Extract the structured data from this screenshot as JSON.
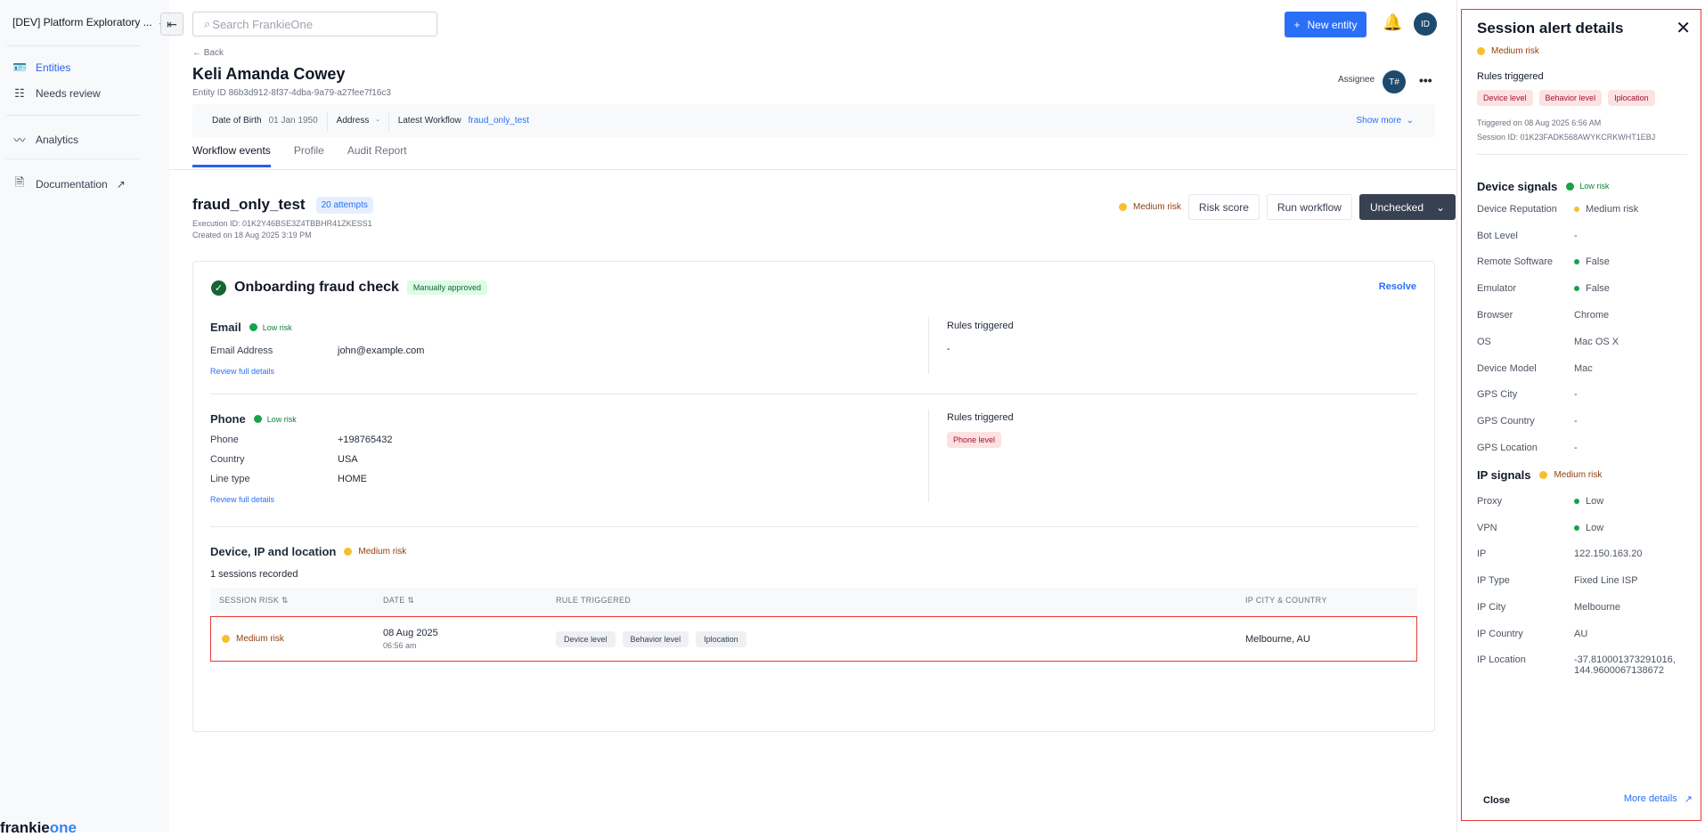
{
  "sidebar": {
    "workspace": "[DEV] Platform Exploratory ...",
    "items": [
      {
        "label": "Entities",
        "icon": "entities-card-icon"
      },
      {
        "label": "Needs review",
        "icon": "needs-review-icon"
      },
      {
        "label": "Analytics",
        "icon": "analytics-line-icon"
      },
      {
        "label": "Documentation",
        "icon": "document-icon"
      }
    ],
    "logo_a": "frankie",
    "logo_b": "one"
  },
  "header": {
    "search_placeholder": "Search FrankieOne",
    "new_entity": "New entity",
    "user_initials": "ID"
  },
  "entity": {
    "back": "Back",
    "name": "Keli Amanda Cowey",
    "entity_id": "Entity ID 86b3d912-8f37-4dba-9a79-a27fee7f16c3",
    "assignee_label": "Assignee",
    "assignee_initials": "T#",
    "dob_label": "Date of Birth",
    "dob": "01 Jan 1950",
    "address_label": "Address",
    "address": "-",
    "workflow_label": "Latest Workflow",
    "workflow": "fraud_only_test",
    "show_more": "Show more"
  },
  "tabs": [
    "Workflow events",
    "Profile",
    "Audit Report"
  ],
  "workflow": {
    "title": "fraud_only_test",
    "attempts": "20 attempts",
    "execution_id": "Execution ID: 01K2Y46BSE3Z4TBBHR41ZKESS1",
    "created": "Created on 18 Aug 2025 3:19 PM",
    "risk": "Medium risk",
    "risk_score": "Risk score",
    "run": "Run workflow",
    "status": "Unchecked"
  },
  "check": {
    "title": "Onboarding fraud check",
    "badge": "Manually approved",
    "resolve": "Resolve",
    "email": {
      "title": "Email",
      "risk": "Low risk",
      "label": "Email Address",
      "value": "john@example.com",
      "review": "Review full details",
      "rules_title": "Rules triggered",
      "rules": "-"
    },
    "phone": {
      "title": "Phone",
      "risk": "Low risk",
      "rows": [
        {
          "k": "Phone",
          "v": "+198765432"
        },
        {
          "k": "Country",
          "v": "USA"
        },
        {
          "k": "Line type",
          "v": "HOME"
        }
      ],
      "review": "Review full details",
      "rules_title": "Rules triggered",
      "rule": "Phone level"
    },
    "device": {
      "title": "Device, IP and location",
      "risk": "Medium risk",
      "sessions": "1 sessions recorded",
      "columns": [
        "SESSION RISK",
        "DATE",
        "RULE TRIGGERED",
        "IP CITY & COUNTRY"
      ],
      "row": {
        "risk": "Medium risk",
        "date": "08 Aug 2025",
        "time": "06:56 am",
        "rules": [
          "Device level",
          "Behavior level",
          "Iplocation"
        ],
        "location": "Melbourne, AU"
      }
    }
  },
  "panel": {
    "title": "Session alert details",
    "risk": "Medium risk",
    "rules_title": "Rules triggered",
    "rules": [
      "Device level",
      "Behavior level",
      "Iplocation"
    ],
    "triggered": "Triggered on 08 Aug 2025 6:56 AM",
    "session_id": "Session ID: 01K23FADK568AWYKCRKWHT1EBJ",
    "device_title": "Device signals",
    "device_risk": "Low risk",
    "device": [
      {
        "k": "Device Reputation",
        "v": "Medium risk",
        "dot": "y"
      },
      {
        "k": "Bot Level",
        "v": "-"
      },
      {
        "k": "Remote Software",
        "v": "False",
        "dot": "g"
      },
      {
        "k": "Emulator",
        "v": "False",
        "dot": "g"
      },
      {
        "k": "Browser",
        "v": "Chrome"
      },
      {
        "k": "OS",
        "v": "Mac OS X"
      },
      {
        "k": "Device Model",
        "v": "Mac"
      },
      {
        "k": "GPS City",
        "v": "-"
      },
      {
        "k": "GPS Country",
        "v": "-"
      },
      {
        "k": "GPS Location",
        "v": "-"
      }
    ],
    "ip_title": "IP signals",
    "ip_risk": "Medium risk",
    "ip": [
      {
        "k": "Proxy",
        "v": "Low",
        "dot": "g"
      },
      {
        "k": "VPN",
        "v": "Low",
        "dot": "g"
      },
      {
        "k": "IP",
        "v": "122.150.163.20"
      },
      {
        "k": "IP Type",
        "v": "Fixed Line ISP"
      },
      {
        "k": "IP City",
        "v": "Melbourne"
      },
      {
        "k": "IP Country",
        "v": "AU"
      },
      {
        "k": "IP Location",
        "v": "-37.810001373291016, 144.9600067138672"
      }
    ],
    "close": "Close",
    "more": "More details"
  },
  "colors": {
    "primary": "#2b6ff6",
    "medium": "#f6c02b",
    "low": "#16a34a",
    "dark_button": "#374151"
  }
}
